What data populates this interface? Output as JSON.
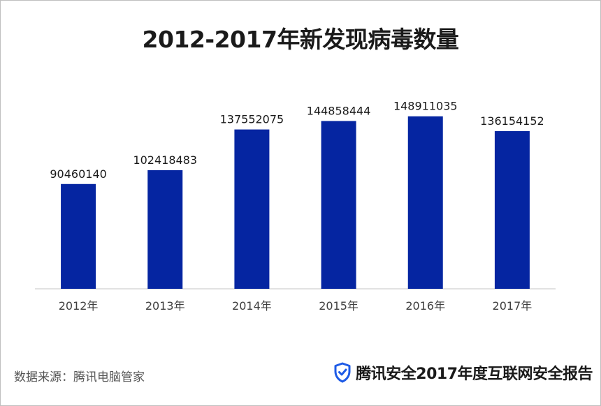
{
  "title": "2012-2017年新发现病毒数量",
  "source": "数据来源：腾讯电脑管家",
  "brand_text": "腾讯安全2017年度互联网安全报告",
  "colors": {
    "bar": "#0525a1",
    "axis": "#d9d9d9",
    "label": "#1a1a1a",
    "tick": "#404040",
    "shield": "#1e5be6"
  },
  "icons": {
    "brand": "shield-check-icon"
  },
  "chart_data": {
    "type": "bar",
    "categories": [
      "2012年",
      "2013年",
      "2014年",
      "2015年",
      "2016年",
      "2017年"
    ],
    "values": [
      90460140,
      102418483,
      137552075,
      144858444,
      148911035,
      136154152
    ],
    "data_labels": [
      "90460140",
      "102418483",
      "137552075",
      "144858444",
      "148911035",
      "136154152"
    ],
    "title": "2012-2017年新发现病毒数量",
    "xlabel": "",
    "ylabel": "",
    "ylim": [
      0,
      165000000
    ],
    "grid": false,
    "legend": "none"
  }
}
